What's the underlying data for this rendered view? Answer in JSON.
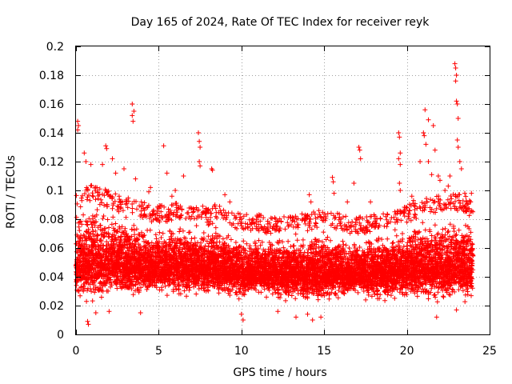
{
  "chart_data": {
    "type": "scatter",
    "title": "Day 165 of 2024, Rate Of TEC Index for receiver reyk",
    "xlabel": "GPS time / hours",
    "ylabel": "ROTI / TECUs",
    "xlim": [
      0,
      25
    ],
    "ylim": [
      0,
      0.2
    ],
    "x_ticks": [
      "0",
      "5",
      "10",
      "15",
      "20",
      "25"
    ],
    "y_ticks": [
      "0",
      "0.02",
      "0.04",
      "0.06",
      "0.08",
      "0.1",
      "0.12",
      "0.14",
      "0.16",
      "0.18",
      "0.2"
    ],
    "grid": true,
    "marker": "+",
    "color": "#ff0000",
    "series": [
      {
        "points_description": "dense band",
        "band": [
          [
            0.0,
            0.022,
            0.085
          ],
          [
            0.5,
            0.02,
            0.09
          ],
          [
            1.0,
            0.02,
            0.092
          ],
          [
            1.5,
            0.022,
            0.09
          ],
          [
            2.0,
            0.022,
            0.088
          ],
          [
            2.5,
            0.022,
            0.085
          ],
          [
            3.0,
            0.024,
            0.085
          ],
          [
            3.5,
            0.024,
            0.082
          ],
          [
            4.0,
            0.025,
            0.08
          ],
          [
            4.5,
            0.025,
            0.078
          ],
          [
            5.0,
            0.025,
            0.078
          ],
          [
            5.5,
            0.025,
            0.078
          ],
          [
            6.0,
            0.025,
            0.08
          ],
          [
            6.5,
            0.025,
            0.078
          ],
          [
            7.0,
            0.025,
            0.078
          ],
          [
            7.5,
            0.025,
            0.078
          ],
          [
            8.0,
            0.025,
            0.076
          ],
          [
            8.5,
            0.025,
            0.078
          ],
          [
            9.0,
            0.024,
            0.076
          ],
          [
            9.5,
            0.024,
            0.074
          ],
          [
            10.0,
            0.022,
            0.072
          ],
          [
            10.5,
            0.024,
            0.072
          ],
          [
            11.0,
            0.024,
            0.072
          ],
          [
            11.5,
            0.024,
            0.07
          ],
          [
            12.0,
            0.024,
            0.07
          ],
          [
            12.5,
            0.022,
            0.07
          ],
          [
            13.0,
            0.022,
            0.072
          ],
          [
            13.5,
            0.022,
            0.072
          ],
          [
            14.0,
            0.02,
            0.072
          ],
          [
            14.5,
            0.02,
            0.074
          ],
          [
            15.0,
            0.02,
            0.075
          ],
          [
            15.5,
            0.022,
            0.074
          ],
          [
            16.0,
            0.024,
            0.072
          ],
          [
            16.5,
            0.024,
            0.07
          ],
          [
            17.0,
            0.024,
            0.07
          ],
          [
            17.5,
            0.022,
            0.07
          ],
          [
            18.0,
            0.022,
            0.072
          ],
          [
            18.5,
            0.022,
            0.072
          ],
          [
            19.0,
            0.022,
            0.074
          ],
          [
            19.5,
            0.022,
            0.076
          ],
          [
            20.0,
            0.022,
            0.078
          ],
          [
            20.5,
            0.022,
            0.08
          ],
          [
            21.0,
            0.022,
            0.082
          ],
          [
            21.5,
            0.02,
            0.084
          ],
          [
            22.0,
            0.02,
            0.085
          ],
          [
            22.5,
            0.02,
            0.086
          ],
          [
            23.0,
            0.02,
            0.086
          ],
          [
            23.5,
            0.02,
            0.085
          ],
          [
            24.0,
            0.022,
            0.08
          ]
        ],
        "outliers": [
          [
            0.1,
            0.148
          ],
          [
            0.15,
            0.145
          ],
          [
            0.1,
            0.142
          ],
          [
            0.5,
            0.126
          ],
          [
            0.6,
            0.12
          ],
          [
            0.9,
            0.118
          ],
          [
            0.7,
            0.009
          ],
          [
            0.75,
            0.007
          ],
          [
            1.6,
            0.118
          ],
          [
            1.8,
            0.131
          ],
          [
            1.85,
            0.129
          ],
          [
            2.2,
            0.122
          ],
          [
            2.4,
            0.112
          ],
          [
            2.9,
            0.115
          ],
          [
            3.4,
            0.16
          ],
          [
            3.4,
            0.152
          ],
          [
            3.45,
            0.148
          ],
          [
            3.5,
            0.155
          ],
          [
            3.6,
            0.108
          ],
          [
            4.4,
            0.099
          ],
          [
            4.5,
            0.102
          ],
          [
            5.3,
            0.131
          ],
          [
            5.5,
            0.112
          ],
          [
            5.8,
            0.096
          ],
          [
            6.0,
            0.1
          ],
          [
            6.5,
            0.11
          ],
          [
            7.4,
            0.14
          ],
          [
            7.45,
            0.134
          ],
          [
            7.5,
            0.13
          ],
          [
            7.45,
            0.12
          ],
          [
            7.5,
            0.117
          ],
          [
            8.2,
            0.115
          ],
          [
            8.25,
            0.114
          ],
          [
            8.4,
            0.09
          ],
          [
            9.0,
            0.097
          ],
          [
            9.3,
            0.092
          ],
          [
            10.1,
            0.01
          ],
          [
            10.0,
            0.014
          ],
          [
            13.3,
            0.012
          ],
          [
            14.0,
            0.014
          ],
          [
            14.3,
            0.01
          ],
          [
            14.8,
            0.012
          ],
          [
            14.1,
            0.097
          ],
          [
            14.2,
            0.092
          ],
          [
            15.5,
            0.109
          ],
          [
            15.55,
            0.106
          ],
          [
            15.6,
            0.098
          ],
          [
            16.4,
            0.092
          ],
          [
            16.8,
            0.105
          ],
          [
            17.1,
            0.13
          ],
          [
            17.15,
            0.128
          ],
          [
            17.2,
            0.122
          ],
          [
            17.8,
            0.092
          ],
          [
            19.5,
            0.14
          ],
          [
            19.55,
            0.137
          ],
          [
            19.6,
            0.126
          ],
          [
            19.5,
            0.122
          ],
          [
            19.6,
            0.118
          ],
          [
            19.55,
            0.105
          ],
          [
            19.6,
            0.1
          ],
          [
            20.3,
            0.096
          ],
          [
            20.4,
            0.093
          ],
          [
            20.8,
            0.12
          ],
          [
            21.0,
            0.14
          ],
          [
            21.05,
            0.138
          ],
          [
            21.1,
            0.156
          ],
          [
            21.3,
            0.149
          ],
          [
            21.15,
            0.132
          ],
          [
            21.3,
            0.12
          ],
          [
            21.5,
            0.111
          ],
          [
            21.6,
            0.145
          ],
          [
            21.7,
            0.128
          ],
          [
            21.9,
            0.11
          ],
          [
            22.0,
            0.107
          ],
          [
            22.3,
            0.1
          ],
          [
            22.5,
            0.103
          ],
          [
            22.6,
            0.11
          ],
          [
            22.9,
            0.188
          ],
          [
            22.95,
            0.185
          ],
          [
            23.0,
            0.18
          ],
          [
            22.95,
            0.176
          ],
          [
            23.0,
            0.162
          ],
          [
            23.05,
            0.16
          ],
          [
            23.1,
            0.15
          ],
          [
            23.05,
            0.135
          ],
          [
            23.1,
            0.13
          ],
          [
            23.2,
            0.12
          ],
          [
            23.3,
            0.115
          ],
          [
            23.5,
            0.098
          ],
          [
            23.6,
            0.092
          ],
          [
            23.9,
            0.098
          ],
          [
            21.8,
            0.012
          ],
          [
            23.0,
            0.017
          ],
          [
            1.2,
            0.015
          ],
          [
            2.0,
            0.016
          ],
          [
            3.9,
            0.015
          ],
          [
            12.2,
            0.016
          ]
        ]
      }
    ]
  }
}
